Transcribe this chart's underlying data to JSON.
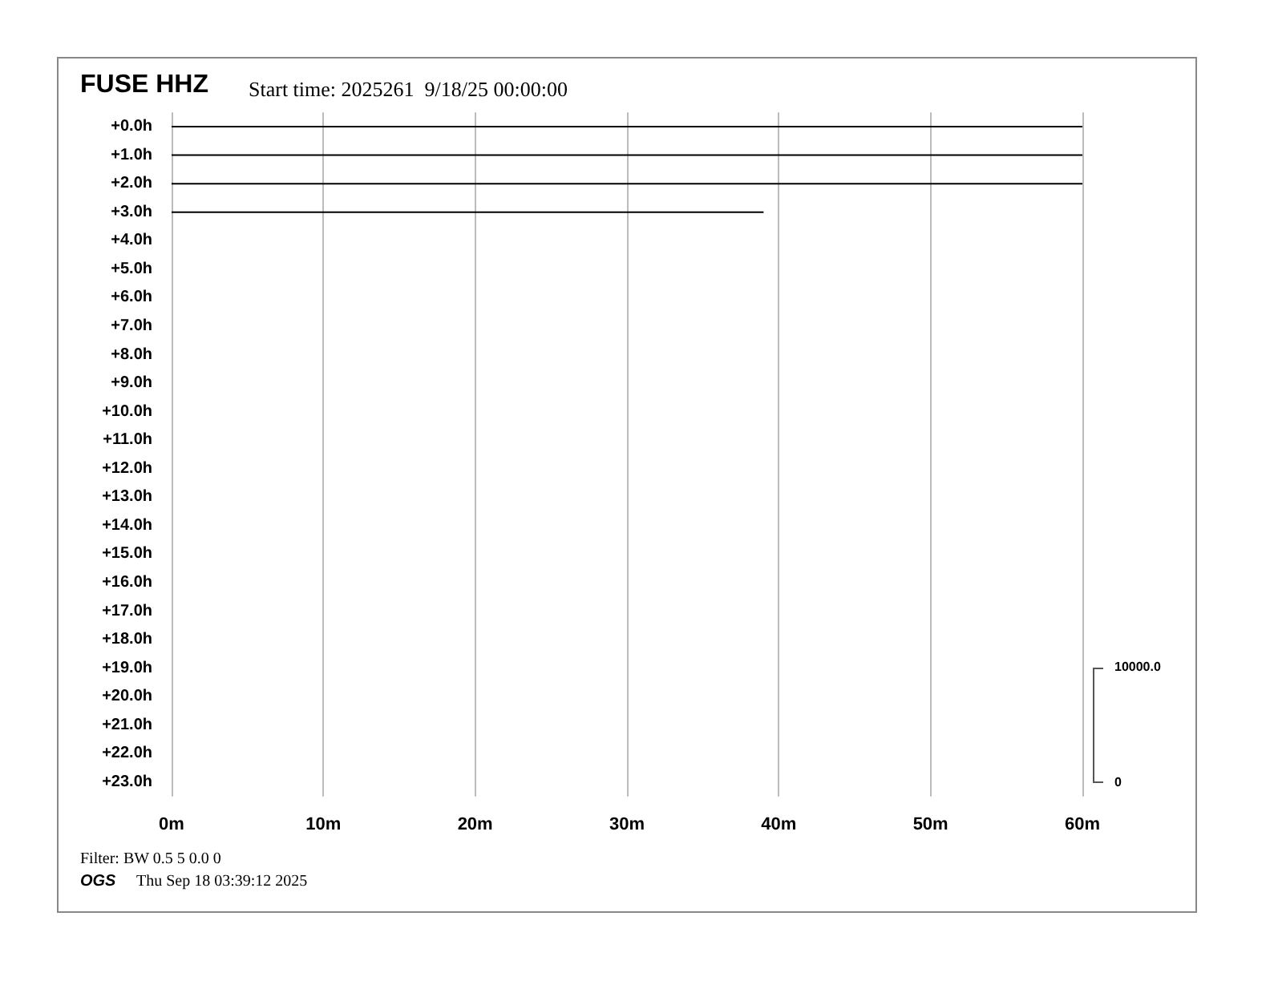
{
  "chart_data": {
    "type": "line",
    "title": "FUSE HHZ",
    "subtitle": "Start time: 2025261  9/18/25 00:00:00",
    "annotations": [
      "Filter: BW 0.5 5 0.0 0",
      "OGS",
      "Thu Sep 18 03:39:12 2025",
      "10000.0",
      "0"
    ],
    "series": [
      {
        "color": "#000000",
        "x": [
          0,
          60
        ],
        "values": [
          0,
          0
        ]
      },
      {
        "color": "#000000",
        "x": [
          0,
          60
        ],
        "values": [
          1,
          1
        ]
      },
      {
        "color": "#000000",
        "x": [
          0,
          60
        ],
        "values": [
          2,
          2
        ]
      },
      {
        "color": "#000000",
        "x": [
          0,
          39
        ],
        "values": [
          3,
          3
        ]
      }
    ],
    "xlim": [
      0,
      60
    ],
    "xticks": [
      {
        "value": 0,
        "label": "0m"
      },
      {
        "value": 10,
        "label": "10m"
      },
      {
        "value": 20,
        "label": "20m"
      },
      {
        "value": 30,
        "label": "30m"
      },
      {
        "value": 40,
        "label": "40m"
      },
      {
        "value": 50,
        "label": "50m"
      },
      {
        "value": 60,
        "label": "60m"
      }
    ],
    "ylim": [
      23.5,
      -0.5
    ],
    "yticks": [
      {
        "value": 0,
        "label": "+0.0h"
      },
      {
        "value": 1,
        "label": "+1.0h"
      },
      {
        "value": 2,
        "label": "+2.0h"
      },
      {
        "value": 3,
        "label": "+3.0h"
      },
      {
        "value": 4,
        "label": "+4.0h"
      },
      {
        "value": 5,
        "label": "+5.0h"
      },
      {
        "value": 6,
        "label": "+6.0h"
      },
      {
        "value": 7,
        "label": "+7.0h"
      },
      {
        "value": 8,
        "label": "+8.0h"
      },
      {
        "value": 9,
        "label": "+9.0h"
      },
      {
        "value": 10,
        "label": "+10.0h"
      },
      {
        "value": 11,
        "label": "+11.0h"
      },
      {
        "value": 12,
        "label": "+12.0h"
      },
      {
        "value": 13,
        "label": "+13.0h"
      },
      {
        "value": 14,
        "label": "+14.0h"
      },
      {
        "value": 15,
        "label": "+15.0h"
      },
      {
        "value": 16,
        "label": "+16.0h"
      },
      {
        "value": 17,
        "label": "+17.0h"
      },
      {
        "value": 18,
        "label": "+18.0h"
      },
      {
        "value": 19,
        "label": "+19.0h"
      },
      {
        "value": 20,
        "label": "+20.0h"
      },
      {
        "value": 21,
        "label": "+21.0h"
      },
      {
        "value": 22,
        "label": "+22.0h"
      },
      {
        "value": 23,
        "label": "+23.0h"
      }
    ],
    "grid": "x",
    "marker": "none",
    "line_style": "solid"
  }
}
